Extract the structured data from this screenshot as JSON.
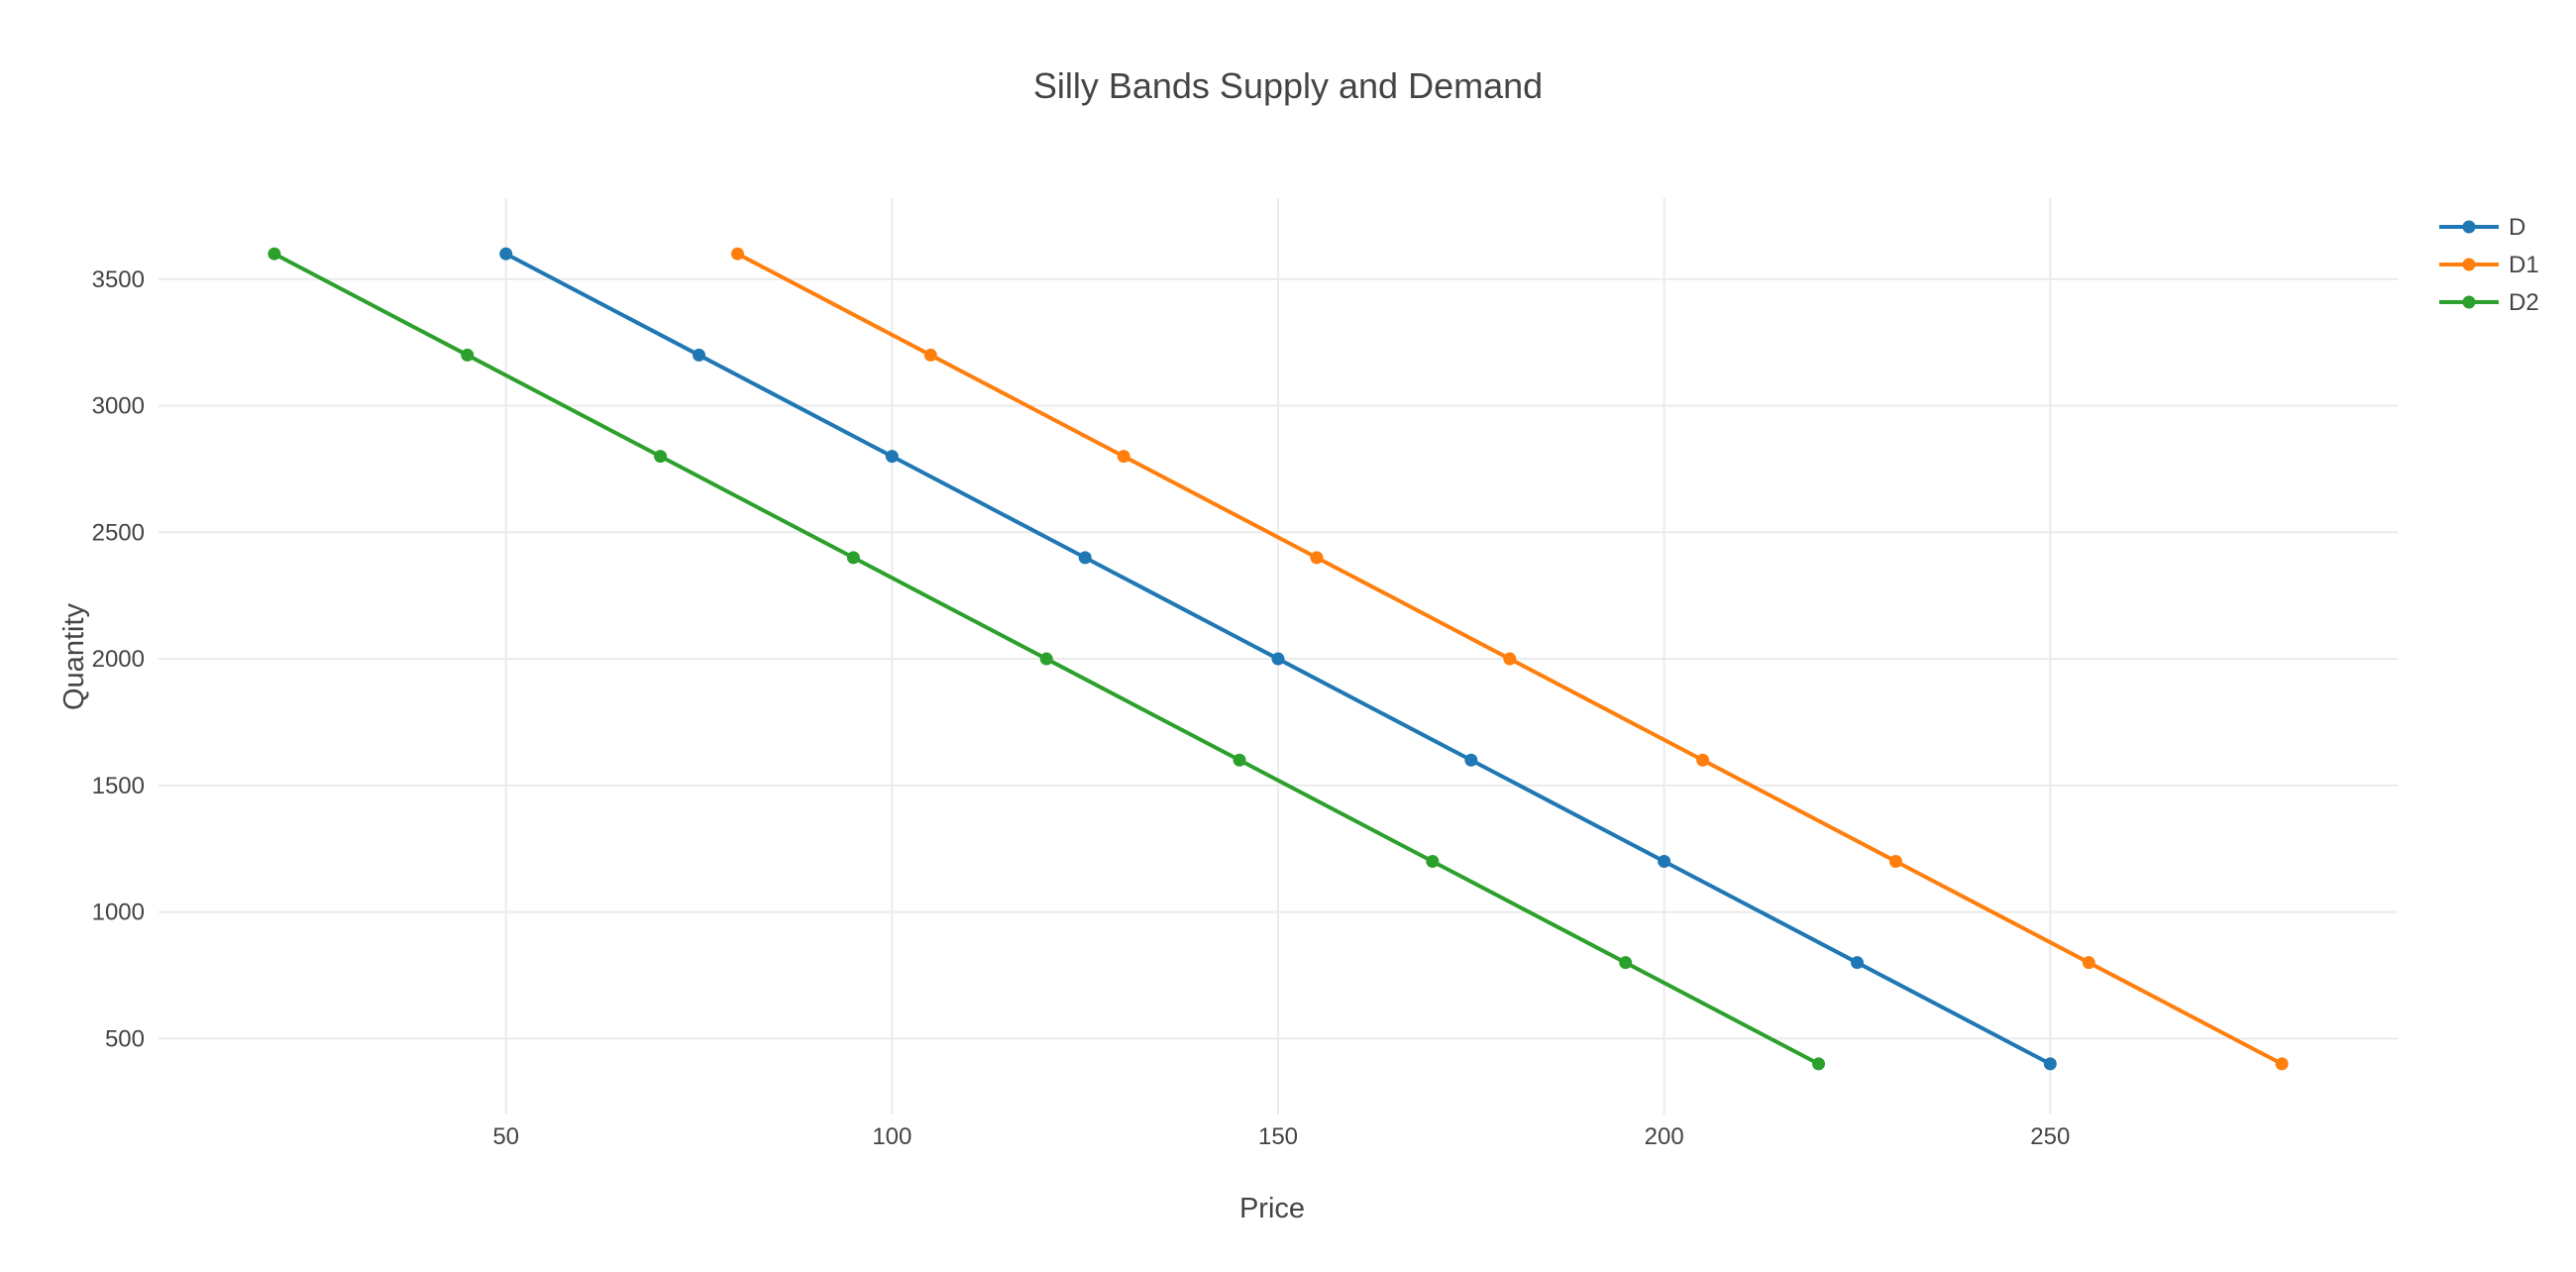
{
  "chart_data": {
    "type": "line",
    "title": "Silly Bands Supply and Demand",
    "xlabel": "Price",
    "ylabel": "Quantity",
    "xlim": [
      5,
      295
    ],
    "ylim": [
      200,
      3820
    ],
    "xticks": [
      50,
      100,
      150,
      200,
      250
    ],
    "yticks": [
      500,
      1000,
      1500,
      2000,
      2500,
      3000,
      3500
    ],
    "grid": true,
    "legend_position": "top-right",
    "series": [
      {
        "name": "D",
        "color": "#1f77b4",
        "x": [
          50,
          75,
          100,
          125,
          150,
          175,
          200,
          225,
          250
        ],
        "y": [
          3600,
          3200,
          2800,
          2400,
          2000,
          1600,
          1200,
          800,
          400
        ]
      },
      {
        "name": "D1",
        "color": "#ff7f0e",
        "x": [
          80,
          105,
          130,
          155,
          180,
          205,
          230,
          255,
          280
        ],
        "y": [
          3600,
          3200,
          2800,
          2400,
          2000,
          1600,
          1200,
          800,
          400
        ]
      },
      {
        "name": "D2",
        "color": "#2ca02c",
        "x": [
          20,
          45,
          70,
          95,
          120,
          145,
          170,
          195,
          220
        ],
        "y": [
          3600,
          3200,
          2800,
          2400,
          2000,
          1600,
          1200,
          800,
          400
        ]
      }
    ]
  }
}
